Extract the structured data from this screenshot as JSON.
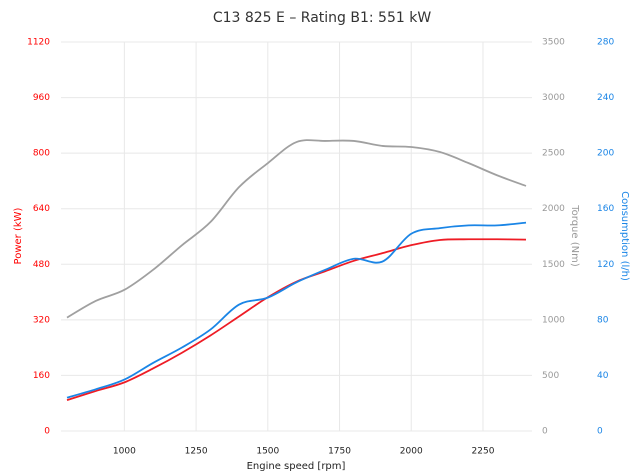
{
  "chart_data": {
    "type": "line",
    "title": "C13 825 E – Rating B1: 551 kW",
    "xlabel": "Engine speed [rpm]",
    "ylabel": "Power (kW)",
    "y2label": "Torque (Nm)",
    "y3label": "Consumption (l/h)",
    "x": [
      800,
      900,
      1000,
      1100,
      1200,
      1300,
      1400,
      1500,
      1600,
      1700,
      1800,
      1900,
      2000,
      2100,
      2200,
      2300,
      2400
    ],
    "xlim": [
      800,
      2400
    ],
    "xticks": [
      1000,
      1250,
      1500,
      1750,
      2000,
      2250
    ],
    "ylim": [
      0,
      1120
    ],
    "yticks": [
      0,
      160,
      320,
      480,
      640,
      800,
      960,
      1120
    ],
    "ycolor": "#ff0000",
    "y2lim": [
      0,
      3500
    ],
    "y2ticks": [
      0,
      500,
      1000,
      1500,
      2000,
      2500,
      3000,
      3500
    ],
    "y2color": "#999999",
    "y3lim": [
      0,
      280
    ],
    "y3ticks": [
      0,
      40,
      80,
      120,
      160,
      200,
      240,
      280
    ],
    "y3color": "#1a85e6",
    "grid": true,
    "series": [
      {
        "axis": "y2",
        "color": "#a0a0a0",
        "values": [
          1020,
          1170,
          1270,
          1450,
          1670,
          1880,
          2195,
          2410,
          2600,
          2610,
          2610,
          2565,
          2555,
          2510,
          2410,
          2300,
          2205
        ]
      },
      {
        "axis": "y",
        "color": "#ee1c25",
        "values": [
          89,
          115,
          140,
          180,
          225,
          275,
          330,
          385,
          430,
          460,
          490,
          512,
          535,
          550,
          552,
          552,
          551
        ]
      },
      {
        "axis": "y3",
        "color": "#1a85e6",
        "values": [
          24,
          30,
          37,
          49,
          60,
          73,
          91,
          96,
          107,
          116,
          124,
          122,
          142,
          146,
          148,
          148,
          150
        ]
      }
    ]
  }
}
